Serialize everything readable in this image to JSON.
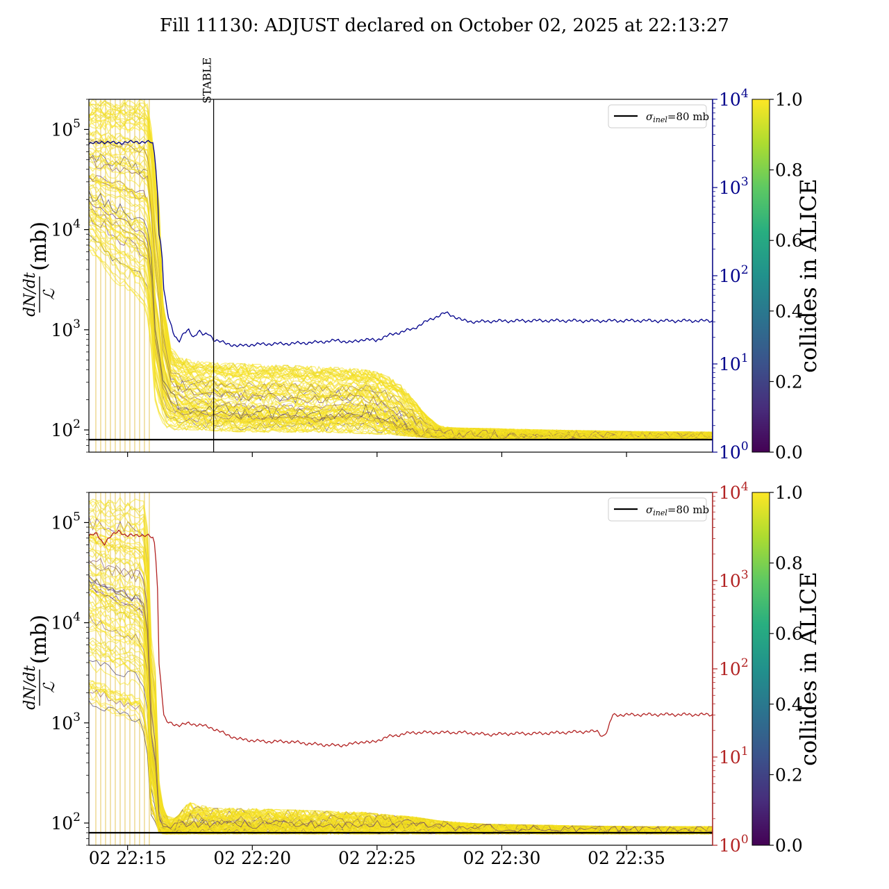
{
  "chart_data": [
    {
      "type": "line",
      "panel": "top",
      "title": "Fill 11130: ADJUST declared on October 02, 2025 at 22:13:27",
      "ylabel_numer": "dN/dt",
      "ylabel_denom": "ℒ",
      "ylabel_unit": "(mb)",
      "yscale": "log",
      "ylim": [
        60,
        200000
      ],
      "y_ticks": [
        {
          "value": 100,
          "base": "10",
          "exp": "2"
        },
        {
          "value": 1000,
          "base": "10",
          "exp": "3"
        },
        {
          "value": 10000,
          "base": "10",
          "exp": "4"
        },
        {
          "value": 100000,
          "base": "10",
          "exp": "5"
        }
      ],
      "xlim_minutes": [
        0,
        25
      ],
      "x_axis_start": "02 22:13:27",
      "x_ticks": [
        {
          "value": 1.55,
          "label": "02 22:15"
        },
        {
          "value": 6.55,
          "label": "02 22:20"
        },
        {
          "value": 11.55,
          "label": "02 22:25"
        },
        {
          "value": 16.55,
          "label": "02 22:30"
        },
        {
          "value": 21.55,
          "label": "02 22:35"
        }
      ],
      "x_tick_labels_shown": false,
      "right_axis": {
        "color": "#00008b",
        "scale": "log",
        "ylim": [
          1,
          10000
        ],
        "ticks": [
          {
            "value": 1,
            "base": "10",
            "exp": "0"
          },
          {
            "value": 10,
            "base": "10",
            "exp": "1"
          },
          {
            "value": 100,
            "base": "10",
            "exp": "2"
          },
          {
            "value": 1000,
            "base": "10",
            "exp": "3"
          },
          {
            "value": 10000,
            "base": "10",
            "exp": "4"
          }
        ]
      },
      "reference_line": {
        "value": 80,
        "label_symbol": "σ",
        "label_sub": "inel",
        "label_rest": "=80 mb",
        "color": "#000000"
      },
      "vertical_marker": {
        "x": 5.0,
        "label": "STABLE"
      },
      "legend": {
        "position": "upper right"
      },
      "right_series": {
        "color": "#00008b",
        "x": [
          0,
          0.5,
          1.0,
          1.5,
          2.0,
          2.5,
          2.55,
          2.8,
          2.9,
          3.0,
          3.1,
          3.2,
          3.4,
          3.6,
          3.8,
          4.0,
          4.2,
          4.4,
          4.6,
          4.8,
          5.0,
          5.5,
          6.0,
          6.5,
          7.0,
          8.0,
          9.0,
          10.0,
          10.5,
          11.0,
          11.5,
          12.0,
          12.5,
          13.0,
          13.5,
          14.0,
          14.3,
          14.7,
          15.0,
          15.5,
          16.0,
          17.0,
          18.0,
          19.0,
          20.0,
          21.0,
          22.0,
          23.0,
          24.0,
          25.0
        ],
        "values": [
          3100,
          3300,
          3200,
          3250,
          3300,
          3250,
          3300,
          300,
          220,
          70,
          45,
          32,
          22,
          18,
          22,
          24,
          20,
          24,
          21,
          22,
          19,
          17,
          16,
          16.5,
          16.8,
          17,
          17.5,
          18.5,
          17.5,
          19,
          18.5,
          21,
          23,
          25,
          30,
          35,
          38,
          34,
          31,
          30,
          30.5,
          30.8,
          31,
          31,
          30.8,
          30.9,
          31,
          30.8,
          30.9,
          30.8
        ]
      },
      "envelope": {
        "description_values_in_mb": true,
        "x": [
          0,
          1.0,
          2.0,
          2.3,
          2.6,
          2.9,
          3.2,
          3.6,
          4.0,
          4.5,
          5.0,
          6.0,
          7.0,
          8.0,
          9.0,
          10.0,
          10.5,
          11.0,
          11.5,
          12.0,
          12.5,
          13.0,
          13.5,
          14.0,
          14.5,
          15.0,
          16.0,
          18.0,
          20.0,
          22.0,
          25.0
        ],
        "upper": [
          200000,
          200000,
          200000,
          200000,
          60000,
          2500,
          700,
          550,
          500,
          480,
          470,
          460,
          450,
          440,
          430,
          420,
          410,
          400,
          380,
          340,
          280,
          200,
          140,
          110,
          105,
          104,
          103,
          100,
          98,
          96,
          95
        ],
        "lower": [
          6000,
          3000,
          2000,
          1500,
          200,
          120,
          100,
          100,
          100,
          100,
          98,
          96,
          95,
          95,
          95,
          94,
          93,
          92,
          91,
          90,
          88,
          86,
          84,
          83,
          82,
          82,
          82,
          82,
          82,
          82,
          82
        ],
        "mid": [
          30000,
          25000,
          20000,
          20000,
          2000,
          500,
          250,
          200,
          190,
          180,
          180,
          160,
          160,
          155,
          155,
          160,
          170,
          175,
          160,
          140,
          120,
          105,
          92,
          88,
          87,
          87,
          87,
          86,
          86,
          86,
          86
        ]
      },
      "colorbar": {
        "label": "collides in ALICE",
        "range": [
          0,
          1
        ],
        "ticks": [
          "0.0",
          "0.2",
          "0.4",
          "0.6",
          "0.8",
          "1.0"
        ],
        "colormap": "viridis"
      }
    },
    {
      "type": "line",
      "panel": "bottom",
      "ylabel_numer": "dN/dt",
      "ylabel_denom": "ℒ",
      "ylabel_unit": "(mb)",
      "yscale": "log",
      "ylim": [
        60,
        200000
      ],
      "y_ticks": [
        {
          "value": 100,
          "base": "10",
          "exp": "2"
        },
        {
          "value": 1000,
          "base": "10",
          "exp": "3"
        },
        {
          "value": 10000,
          "base": "10",
          "exp": "4"
        },
        {
          "value": 100000,
          "base": "10",
          "exp": "5"
        }
      ],
      "xlim_minutes": [
        0,
        25
      ],
      "x_ticks": [
        {
          "value": 1.55,
          "label": "02 22:15"
        },
        {
          "value": 6.55,
          "label": "02 22:20"
        },
        {
          "value": 11.55,
          "label": "02 22:25"
        },
        {
          "value": 16.55,
          "label": "02 22:30"
        },
        {
          "value": 21.55,
          "label": "02 22:35"
        }
      ],
      "x_tick_labels_shown": true,
      "right_axis": {
        "color": "#b22222",
        "scale": "log",
        "ylim": [
          1,
          10000
        ],
        "ticks": [
          {
            "value": 1,
            "base": "10",
            "exp": "0"
          },
          {
            "value": 10,
            "base": "10",
            "exp": "1"
          },
          {
            "value": 100,
            "base": "10",
            "exp": "2"
          },
          {
            "value": 1000,
            "base": "10",
            "exp": "3"
          },
          {
            "value": 10000,
            "base": "10",
            "exp": "4"
          }
        ]
      },
      "reference_line": {
        "value": 80,
        "label_symbol": "σ",
        "label_sub": "inel",
        "label_rest": "=80 mb",
        "color": "#000000"
      },
      "legend": {
        "position": "upper right"
      },
      "right_series": {
        "color": "#b22222",
        "x": [
          0,
          0.3,
          0.6,
          0.9,
          1.2,
          1.5,
          2.0,
          2.4,
          2.6,
          2.8,
          2.9,
          3.0,
          3.1,
          3.3,
          3.6,
          4.0,
          4.5,
          5.0,
          5.5,
          6.0,
          7.0,
          8.0,
          9.0,
          10.0,
          10.5,
          11.0,
          11.3,
          11.6,
          12.0,
          12.5,
          13.0,
          14.0,
          15.0,
          16.0,
          17.0,
          18.0,
          19.0,
          20.0,
          20.4,
          20.6,
          20.8,
          21.0,
          22.0,
          23.0,
          24.0,
          25.0
        ],
        "values": [
          3200,
          3400,
          2600,
          3200,
          3700,
          3200,
          3300,
          3200,
          3000,
          120,
          60,
          30,
          25,
          24,
          23,
          24,
          23,
          21,
          18,
          16,
          15,
          15,
          14,
          13.5,
          14,
          15,
          14.5,
          15.5,
          17,
          18,
          19,
          19,
          19,
          18,
          18.5,
          18.5,
          19,
          19.5,
          19.5,
          17,
          20,
          30,
          30.2,
          30.4,
          30.3,
          30.3
        ]
      },
      "envelope": {
        "x": [
          0,
          1.0,
          2.0,
          2.2,
          2.5,
          2.8,
          3.0,
          3.5,
          4.0,
          5.0,
          6.0,
          8.0,
          10.0,
          11.0,
          12.0,
          13.0,
          14.0,
          15.0,
          16.0,
          18.0,
          20.0,
          22.0,
          25.0
        ],
        "upper": [
          200000,
          200000,
          200000,
          200000,
          8000,
          300,
          120,
          110,
          160,
          140,
          140,
          135,
          130,
          128,
          120,
          115,
          105,
          100,
          97,
          95,
          93,
          92,
          92
        ],
        "lower": [
          1500,
          1200,
          1000,
          800,
          120,
          80,
          78,
          78,
          78,
          78,
          78,
          78,
          78,
          78,
          78,
          78,
          78,
          78,
          78,
          78,
          78,
          78,
          78
        ],
        "mid": [
          20000,
          15000,
          12000,
          10000,
          500,
          95,
          88,
          90,
          92,
          92,
          92,
          92,
          92,
          93,
          95,
          96,
          92,
          89,
          88,
          87,
          87,
          86,
          86
        ]
      },
      "colorbar": {
        "label": "collides in ALICE",
        "range": [
          0,
          1
        ],
        "ticks": [
          "0.0",
          "0.2",
          "0.4",
          "0.6",
          "0.8",
          "1.0"
        ],
        "colormap": "viridis"
      }
    }
  ]
}
